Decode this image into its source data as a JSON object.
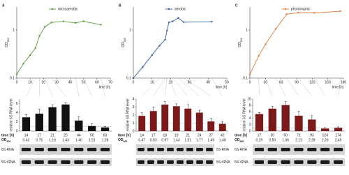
{
  "chart_data": [
    {
      "type": "line",
      "log": true,
      "y_label": "OD",
      "y_label_sub": "600",
      "x_label": "time [h]",
      "x": [
        0,
        5,
        10,
        14,
        17,
        21,
        26,
        35,
        44,
        50,
        63
      ],
      "series": [
        {
          "name": "microaerobic",
          "color": "#5a9a3a",
          "values": [
            0.12,
            0.2,
            0.3,
            0.42,
            0.75,
            1.16,
            1.43,
            1.5,
            1.4,
            1.51,
            1.28
          ]
        }
      ],
      "xlim": [
        0,
        70
      ],
      "xticks": [
        0,
        10,
        20,
        30,
        40,
        50,
        60,
        70
      ],
      "ylim": [
        0.1,
        3
      ],
      "yticks": [
        0.1,
        1
      ]
    },
    {
      "type": "bar",
      "y_label": "relative 6S RNA level",
      "categories": [
        14,
        17,
        21,
        26,
        44,
        50,
        63
      ],
      "values": [
        3.0,
        3.8,
        5.2,
        5.8,
        2.3,
        1.1,
        0.8
      ],
      "errors": [
        0.6,
        1.0,
        0.5,
        0.4,
        0.8,
        0.5,
        0.2
      ],
      "color": "#111111",
      "ylim": [
        0,
        7
      ],
      "yticks": [
        0,
        2,
        4,
        6
      ],
      "ref_line": 1
    },
    {
      "type": "line",
      "log": true,
      "y_label": "OD",
      "y_label_sub": "600",
      "x_label": "time [h]",
      "x": [
        0,
        5,
        10,
        14,
        17,
        18,
        19,
        21,
        24,
        27,
        42
      ],
      "series": [
        {
          "name": "aerobic",
          "color": "#2f5f9f",
          "values": [
            0.1,
            0.17,
            0.3,
            0.47,
            0.63,
            0.97,
            1.43,
            1.51,
            1.77,
            1.45,
            1.48
          ]
        }
      ],
      "xlim": [
        0,
        50
      ],
      "xticks": [
        0,
        10,
        20,
        30,
        40,
        50
      ],
      "ylim": [
        0.1,
        3
      ],
      "yticks": [
        0.1,
        1
      ]
    },
    {
      "type": "bar",
      "y_label": "relative 6S RNA level",
      "categories": [
        14,
        17,
        18,
        19,
        21,
        24,
        27,
        42
      ],
      "values": [
        1.9,
        2.5,
        3.3,
        3.1,
        2.8,
        2.3,
        1.2,
        0.9
      ],
      "errors": [
        0.4,
        0.5,
        0.4,
        0.3,
        0.5,
        0.3,
        0.4,
        0.3
      ],
      "color": "#7a1a1a",
      "ylim": [
        0,
        4
      ],
      "yticks": [
        0,
        1,
        2,
        3,
        4
      ],
      "ref_line": 1
    },
    {
      "type": "line",
      "log": true,
      "y_label": "OD",
      "y_label_sub": "660",
      "x_label": "time [h]",
      "x": [
        0,
        17,
        30,
        50,
        71,
        93,
        124,
        174
      ],
      "series": [
        {
          "name": "phototrophic",
          "color": "#e07a3a",
          "values": [
            0.12,
            0.29,
            0.5,
            1.06,
            2.13,
            2.28,
            2.26,
            2.45
          ]
        }
      ],
      "xlim": [
        0,
        180
      ],
      "xticks": [
        0,
        30,
        60,
        90,
        120,
        150,
        180
      ],
      "ylim": [
        0.1,
        3
      ],
      "yticks": [
        0.1,
        1
      ]
    },
    {
      "type": "bar",
      "y_label": "relative 6S RNA level",
      "categories": [
        17,
        30,
        50,
        71,
        93,
        124,
        174
      ],
      "values": [
        5.3,
        7.0,
        8.1,
        4.8,
        3.6,
        0.8,
        1.0
      ],
      "errors": [
        0.5,
        0.7,
        1.2,
        1.4,
        1.2,
        0.3,
        0.3
      ],
      "color": "#7a1a1a",
      "ylim": [
        0,
        10
      ],
      "yticks": [
        0,
        2,
        4,
        6,
        8,
        10
      ],
      "ref_line": 1
    }
  ],
  "panels": [
    {
      "letter": "A",
      "time_header": "time [h]",
      "od_header": "OD",
      "od_sub": "600",
      "od": [
        "0.42",
        "0.75",
        "1.16",
        "1.43",
        "1.40",
        "1.51",
        "1.28"
      ],
      "gels": [
        "6S RNA",
        "5S rRNA"
      ]
    },
    {
      "letter": "B",
      "time_header": "time [h]",
      "od_header": "OD",
      "od_sub": "600",
      "od": [
        "0.47",
        "0.63",
        "0.97",
        "1.43",
        "1.51",
        "1.77",
        "1.45",
        "1.48"
      ],
      "gels": [
        "6S RNA",
        "5S rRNA"
      ]
    },
    {
      "letter": "C",
      "time_header": "time [h]",
      "od_header": "OD",
      "od_sub": "660",
      "od": [
        "0.29",
        "0.50",
        "1.06",
        "2.13",
        "2.28",
        "2.26",
        "2.45"
      ],
      "gels": [
        "6S RNA",
        "5S rRNA"
      ]
    }
  ]
}
